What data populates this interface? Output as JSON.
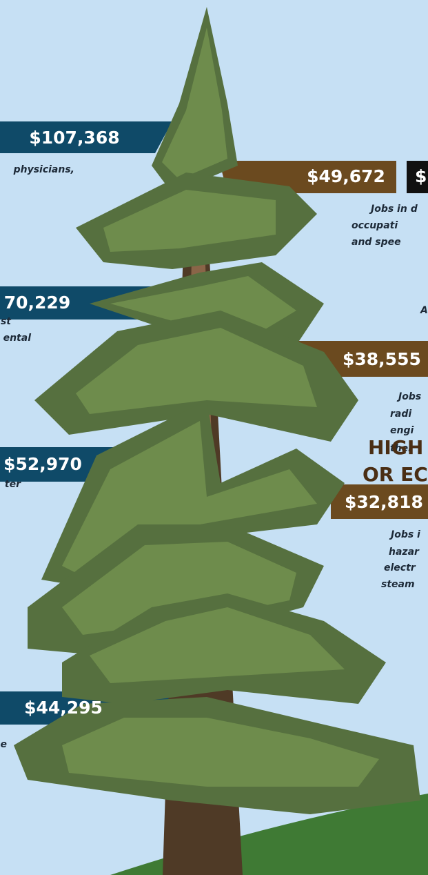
{
  "left_labels": [
    {
      "amount": "$107,368",
      "desc": [
        "physicians,"
      ]
    },
    {
      "amount": "70,229",
      "desc": [
        "st",
        "ental"
      ]
    },
    {
      "amount": "$52,970",
      "desc": [
        "ter"
      ]
    },
    {
      "amount": "$44,295",
      "desc": [
        "e"
      ]
    }
  ],
  "right_labels": [
    {
      "amount": "$49,672",
      "extra": "$",
      "desc": [
        "Jobs in d",
        "occupati",
        "and spee"
      ]
    },
    {
      "heading": "A",
      "amount": "$38,555",
      "desc": [
        "Jobs",
        "radi",
        "engi",
        "ther"
      ]
    },
    {
      "heading": [
        "HIGH",
        "OR EC"
      ],
      "amount": "$32,818",
      "desc": [
        "Jobs i",
        "hazar",
        "electr",
        "steam"
      ]
    }
  ]
}
